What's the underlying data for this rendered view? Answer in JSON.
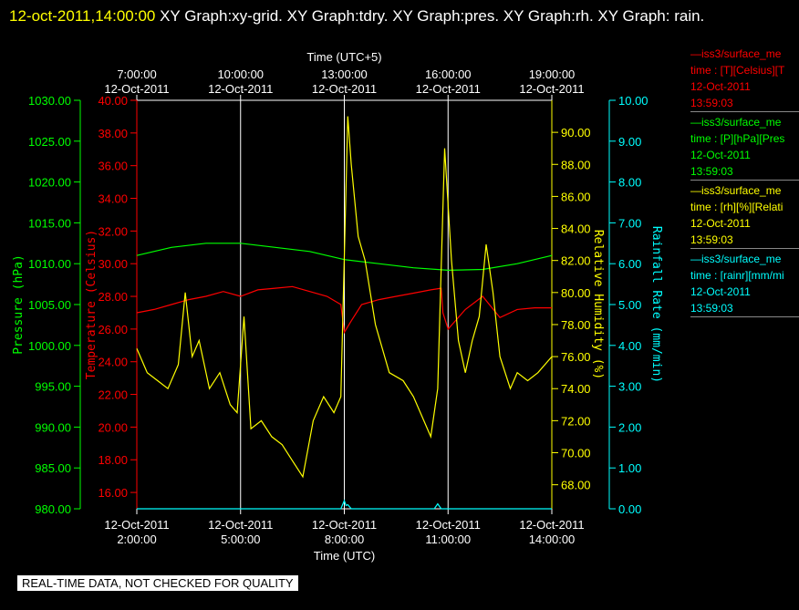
{
  "header": {
    "timestamp": "12-oct-2011,14:00:00",
    "title_text": " XY Graph:xy-grid.  XY Graph:tdry.  XY Graph:pres.  XY Graph:rh.  XY Graph: rain."
  },
  "footer": {
    "note": "REAL-TIME DATA, NOT CHECKED FOR QUALITY"
  },
  "colors": {
    "pressure": "#00ff00",
    "temperature": "#ff0000",
    "humidity": "#ffff00",
    "rain": "#00ffff",
    "grid": "#ffffff"
  },
  "legend": [
    {
      "line1": "—iss3/surface_me",
      "line2": "time : [T][Celsius][T",
      "date": "12-Oct-2011",
      "time": "13:59:03",
      "color": "#ff0000"
    },
    {
      "line1": "—iss3/surface_me",
      "line2": "time : [P][hPa][Pres",
      "date": "12-Oct-2011",
      "time": "13:59:03",
      "color": "#00ff00"
    },
    {
      "line1": "—iss3/surface_me",
      "line2": "time : [rh][%][Relati",
      "date": "12-Oct-2011",
      "time": "13:59:03",
      "color": "#ffff00"
    },
    {
      "line1": "—iss3/surface_me",
      "line2": "time : [rainr][mm/mi",
      "date": "12-Oct-2011",
      "time": "13:59:03",
      "color": "#00ffff"
    }
  ],
  "chart_data": {
    "type": "line",
    "xlabel": "Time (UTC)",
    "x2label": "Time (UTC+5)",
    "x_ticks_bottom": [
      [
        "12-Oct-2011",
        "2:00:00"
      ],
      [
        "12-Oct-2011",
        "5:00:00"
      ],
      [
        "12-Oct-2011",
        "8:00:00"
      ],
      [
        "12-Oct-2011",
        "11:00:00"
      ],
      [
        "12-Oct-2011",
        "14:00:00"
      ]
    ],
    "x_ticks_top": [
      [
        "7:00:00",
        "12-Oct-2011"
      ],
      [
        "10:00:00",
        "12-Oct-2011"
      ],
      [
        "13:00:00",
        "12-Oct-2011"
      ],
      [
        "16:00:00",
        "12-Oct-2011"
      ],
      [
        "19:00:00",
        "12-Oct-2011"
      ]
    ],
    "xlim": [
      2,
      14
    ],
    "grid": true,
    "axes": {
      "pressure": {
        "label": "Pressure (hPa)",
        "lim": [
          980,
          1030
        ],
        "ticks": [
          "980.00",
          "985.00",
          "990.00",
          "995.00",
          "1000.00",
          "1005.00",
          "1010.00",
          "1015.00",
          "1020.00",
          "1025.00",
          "1030.00"
        ]
      },
      "temperature": {
        "label": "Temperature (Celsius)",
        "lim": [
          15,
          40
        ],
        "ticks": [
          "16.00",
          "18.00",
          "20.00",
          "22.00",
          "24.00",
          "26.00",
          "28.00",
          "30.00",
          "32.00",
          "34.00",
          "36.00",
          "38.00",
          "40.00"
        ]
      },
      "humidity": {
        "label": "Relative Humidity (%)",
        "lim": [
          66.5,
          92
        ],
        "ticks": [
          "68.00",
          "70.00",
          "72.00",
          "74.00",
          "76.00",
          "78.00",
          "80.00",
          "82.00",
          "84.00",
          "86.00",
          "88.00",
          "90.00"
        ]
      },
      "rain": {
        "label": "Rainfall Rate (mm/min)",
        "lim": [
          0,
          10
        ],
        "ticks": [
          "0.00",
          "1.00",
          "2.00",
          "3.00",
          "4.00",
          "5.00",
          "6.00",
          "7.00",
          "8.00",
          "9.00",
          "10.00"
        ]
      }
    },
    "series": [
      {
        "name": "iss3/surface_me",
        "axis": "pressure",
        "x": [
          2.0,
          3.0,
          4.0,
          5.0,
          6.0,
          7.0,
          8.0,
          9.0,
          10.0,
          11.0,
          12.0,
          13.0,
          14.0
        ],
        "y": [
          1011.0,
          1012.0,
          1012.5,
          1012.5,
          1012.0,
          1011.5,
          1010.5,
          1010.0,
          1009.5,
          1009.2,
          1009.3,
          1010.0,
          1011.0
        ]
      },
      {
        "name": "iss3/surface_me",
        "axis": "temperature",
        "x": [
          2.0,
          2.5,
          3.0,
          3.5,
          4.0,
          4.5,
          5.0,
          5.5,
          6.0,
          6.5,
          7.0,
          7.5,
          7.9,
          8.0,
          8.2,
          8.5,
          9.0,
          9.5,
          10.0,
          10.5,
          10.8,
          10.85,
          11.0,
          11.5,
          12.0,
          12.5,
          13.0,
          13.5,
          14.0
        ],
        "y": [
          27.0,
          27.2,
          27.5,
          27.8,
          28.0,
          28.3,
          28.0,
          28.4,
          28.5,
          28.6,
          28.3,
          28.0,
          27.5,
          25.8,
          26.5,
          27.5,
          27.8,
          28.0,
          28.2,
          28.4,
          28.5,
          27.0,
          26.0,
          27.2,
          28.0,
          26.7,
          27.2,
          27.3,
          27.3
        ]
      },
      {
        "name": "iss3/surface_me",
        "axis": "humidity",
        "x": [
          2.0,
          2.3,
          2.6,
          2.9,
          3.2,
          3.4,
          3.6,
          3.8,
          4.1,
          4.4,
          4.7,
          4.9,
          5.1,
          5.3,
          5.6,
          5.9,
          6.2,
          6.5,
          6.8,
          7.1,
          7.4,
          7.7,
          7.9,
          8.1,
          8.2,
          8.4,
          8.6,
          8.9,
          9.3,
          9.7,
          10.0,
          10.3,
          10.5,
          10.7,
          10.9,
          11.1,
          11.3,
          11.5,
          11.7,
          11.9,
          12.1,
          12.3,
          12.5,
          12.8,
          13.0,
          13.3,
          13.6,
          14.0
        ],
        "y": [
          76.5,
          75.0,
          74.5,
          74.0,
          75.5,
          80.0,
          76.0,
          77.0,
          74.0,
          75.0,
          73.0,
          72.5,
          78.5,
          71.5,
          72.0,
          71.0,
          70.5,
          69.5,
          68.5,
          72.0,
          73.5,
          72.5,
          73.5,
          91.0,
          88.0,
          83.5,
          82.0,
          78.0,
          75.0,
          74.5,
          73.5,
          72.0,
          71.0,
          74.0,
          89.0,
          82.0,
          77.0,
          75.0,
          77.0,
          78.5,
          83.0,
          80.0,
          76.0,
          74.0,
          75.0,
          74.5,
          75.0,
          76.0
        ]
      },
      {
        "name": "iss3/surface_me",
        "axis": "rain",
        "x": [
          2.0,
          7.9,
          8.0,
          8.05,
          8.1,
          8.2,
          10.6,
          10.7,
          10.8,
          14.0
        ],
        "y": [
          0.0,
          0.0,
          0.2,
          0.08,
          0.1,
          0.0,
          0.0,
          0.12,
          0.0,
          0.0
        ]
      }
    ]
  }
}
